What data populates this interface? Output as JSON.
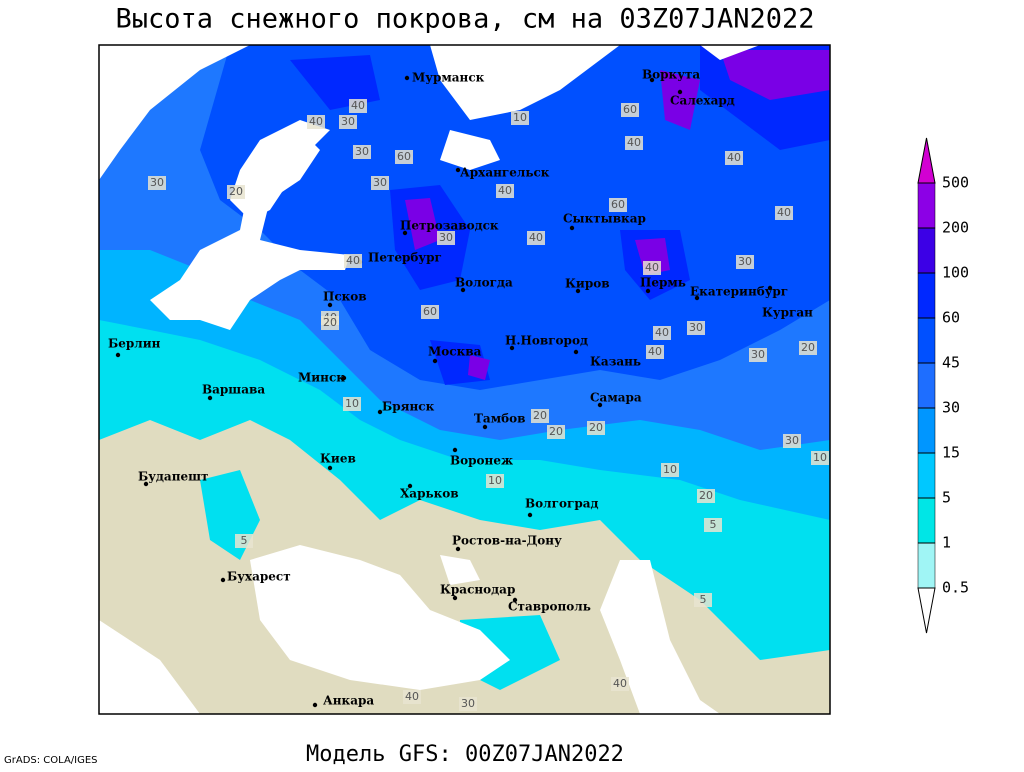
{
  "title": "Высота снежного покрова, см на 03Z07JAN2022",
  "footer": "Модель GFS: 00Z07JAN2022",
  "credit": "GrADS: COLA/IGES",
  "cities": [
    "Мурманск",
    "Воркута",
    "Салехард",
    "Архангельск",
    "Сыктывкар",
    "Петрозаводск",
    "Петербург",
    "Вологда",
    "Киров",
    "Пермь",
    "Екатеринбург",
    "Курган",
    "Псков",
    "Берлин",
    "Минск",
    "Москва",
    "Н.Новгород",
    "Казань",
    "Варшава",
    "Брянск",
    "Тамбов",
    "Самара",
    "Киев",
    "Воронеж",
    "Будапешт",
    "Харьков",
    "Волгоград",
    "Ростов-на-Дону",
    "Бухарест",
    "Краснодар",
    "Ставрополь",
    "Анкара"
  ],
  "contour_labels": [
    "40",
    "30",
    "40",
    "60",
    "30",
    "20",
    "30",
    "30",
    "40",
    "60",
    "40",
    "40",
    "40",
    "60",
    "40",
    "30",
    "10",
    "40",
    "40",
    "60",
    "40",
    "30",
    "40",
    "20",
    "30",
    "40",
    "30",
    "20",
    "20",
    "20",
    "10",
    "10",
    "20",
    "30",
    "20",
    "10",
    "5",
    "5",
    "5",
    "30",
    "40",
    "40",
    "10"
  ],
  "legend": {
    "levels": [
      0.5,
      1,
      5,
      15,
      30,
      45,
      60,
      100,
      200,
      500
    ],
    "colors": [
      "#ffffff",
      "#a0f5f5",
      "#00e6e6",
      "#00c8ff",
      "#0096ff",
      "#1e6eff",
      "#0050ff",
      "#0028ff",
      "#3c00e6",
      "#8c00e6",
      "#d200d2"
    ]
  }
}
